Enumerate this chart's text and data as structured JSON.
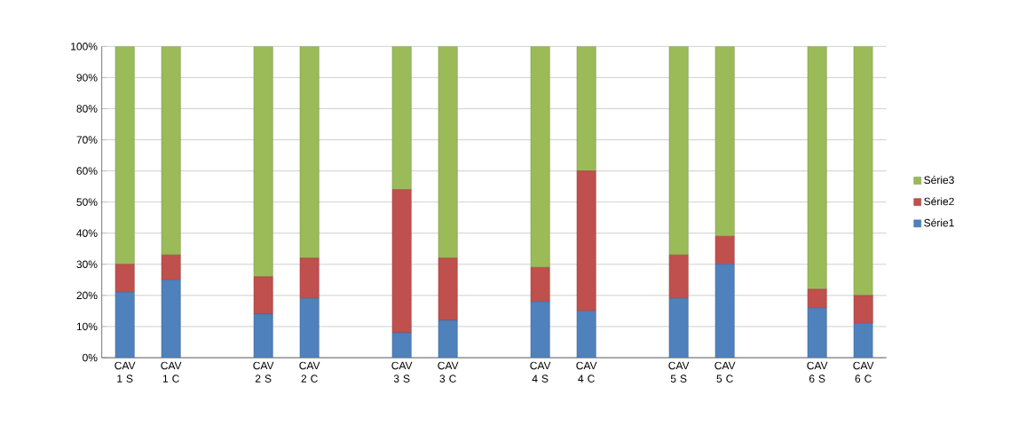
{
  "chart_data": {
    "type": "bar",
    "stacked": true,
    "categories": [
      "CAV 1 S",
      "CAV 1 C",
      null,
      "CAV 2 S",
      "CAV 2 C",
      null,
      "CAV 3 S",
      "CAV 3 C",
      null,
      "CAV 4 S",
      "CAV 4 C",
      null,
      "CAV 5 S",
      "CAV 5 C",
      null,
      "CAV 6 S",
      "CAV 6 C"
    ],
    "series": [
      {
        "name": "Série1",
        "color": "#4f81bd",
        "values": [
          21,
          25,
          null,
          14,
          19,
          null,
          8,
          12,
          null,
          18,
          15,
          null,
          19,
          30,
          null,
          16,
          11
        ]
      },
      {
        "name": "Série2",
        "color": "#c0504d",
        "values": [
          9,
          8,
          null,
          12,
          13,
          null,
          46,
          20,
          null,
          11,
          45,
          null,
          14,
          9,
          null,
          6,
          9
        ]
      },
      {
        "name": "Série3",
        "color": "#9bbb59",
        "values": [
          70,
          67,
          null,
          74,
          68,
          null,
          46,
          68,
          null,
          71,
          40,
          null,
          67,
          61,
          null,
          78,
          80
        ]
      }
    ],
    "ylim": [
      0,
      100
    ],
    "yticks": [
      {
        "value": 0,
        "label": "0%"
      },
      {
        "value": 10,
        "label": "10%"
      },
      {
        "value": 20,
        "label": "20%"
      },
      {
        "value": 30,
        "label": "30%"
      },
      {
        "value": 40,
        "label": "40%"
      },
      {
        "value": 50,
        "label": "50%"
      },
      {
        "value": 60,
        "label": "60%"
      },
      {
        "value": 70,
        "label": "70%"
      },
      {
        "value": 80,
        "label": "80%"
      },
      {
        "value": 90,
        "label": "90%"
      },
      {
        "value": 100,
        "label": "100%"
      }
    ],
    "grid": "y",
    "legend": "right"
  }
}
